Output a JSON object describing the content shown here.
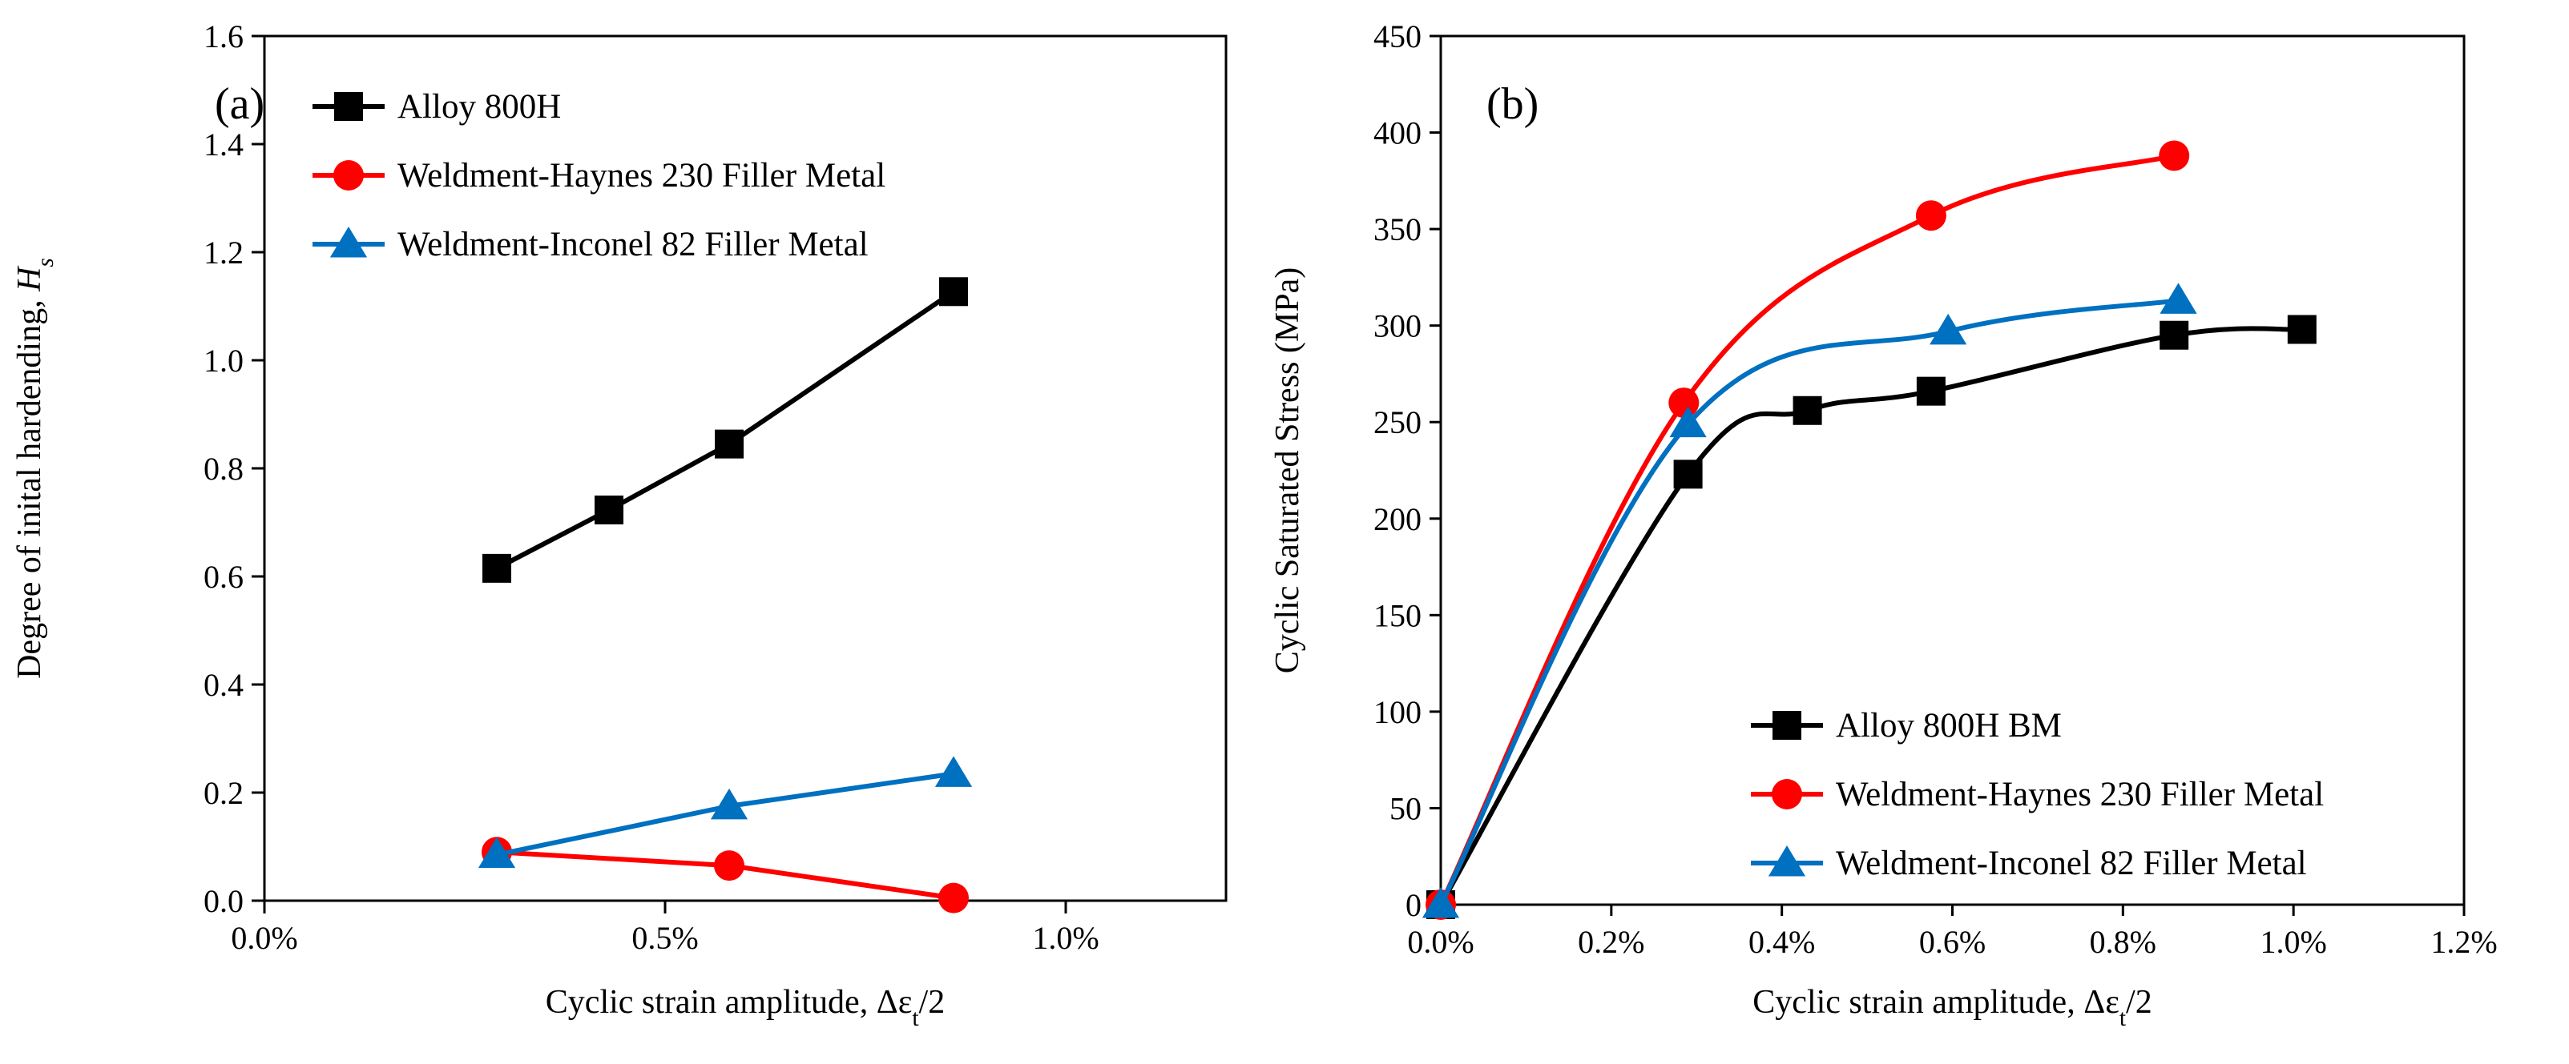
{
  "chart_data": [
    {
      "type": "line",
      "panel_label": "(a)",
      "xlabel": "Cyclic strain amplitude, Δεt/2",
      "ylabel": "Degree of inital hardending, Hs",
      "xlim": [
        0,
        1.2
      ],
      "ylim": [
        0,
        1.6
      ],
      "xticks": [
        "0.0%",
        "0.5%",
        "1.0%"
      ],
      "xtick_values": [
        0,
        0.5,
        1.0
      ],
      "yticks": [
        "0.0",
        "0.2",
        "0.4",
        "0.6",
        "0.8",
        "1.0",
        "1.2",
        "1.4",
        "1.6"
      ],
      "ytick_values": [
        0,
        0.2,
        0.4,
        0.6,
        0.8,
        1.0,
        1.2,
        1.4,
        1.6
      ],
      "legend_position": "top-left",
      "series": [
        {
          "name": "Alloy 800H",
          "color": "#000000",
          "marker": "square",
          "x": [
            0.29,
            0.43,
            0.58,
            0.86
          ],
          "y": [
            0.615,
            0.723,
            0.845,
            1.127
          ]
        },
        {
          "name": "Weldment-Haynes 230 Filler Metal",
          "color": "#ff0000",
          "marker": "circle",
          "x": [
            0.29,
            0.58,
            0.86
          ],
          "y": [
            0.09,
            0.065,
            0.005
          ]
        },
        {
          "name": "Weldment-Inconel 82 Filler Metal",
          "color": "#0070c0",
          "marker": "triangle",
          "x": [
            0.29,
            0.58,
            0.86
          ],
          "y": [
            0.085,
            0.175,
            0.235
          ]
        }
      ]
    },
    {
      "type": "line",
      "panel_label": "(b)",
      "xlabel": "Cyclic strain amplitude, Δεt/2",
      "ylabel": "Cyclic Saturated Stress (MPa)",
      "xlim": [
        0,
        1.2
      ],
      "ylim": [
        0,
        450
      ],
      "xticks": [
        "0.0%",
        "0.2%",
        "0.4%",
        "0.6%",
        "0.8%",
        "1.0%",
        "1.2%"
      ],
      "xtick_values": [
        0,
        0.2,
        0.4,
        0.6,
        0.8,
        1.0,
        1.2
      ],
      "yticks": [
        "0",
        "50",
        "100",
        "150",
        "200",
        "250",
        "300",
        "350",
        "400",
        "450"
      ],
      "ytick_values": [
        0,
        50,
        100,
        150,
        200,
        250,
        300,
        350,
        400,
        450
      ],
      "legend_position": "bottom-right",
      "series": [
        {
          "name": "Alloy 800H BM",
          "color": "#000000",
          "marker": "square",
          "x": [
            0.0,
            0.29,
            0.43,
            0.575,
            0.86,
            1.01
          ],
          "y": [
            0,
            223,
            256,
            266,
            295,
            298
          ]
        },
        {
          "name": "Weldment-Haynes 230 Filler Metal",
          "color": "#ff0000",
          "marker": "circle",
          "x": [
            0.0,
            0.285,
            0.575,
            0.86
          ],
          "y": [
            0,
            260,
            357,
            388
          ]
        },
        {
          "name": "Weldment-Inconel 82 Filler Metal",
          "color": "#0070c0",
          "marker": "triangle",
          "x": [
            0.0,
            0.29,
            0.595,
            0.865
          ],
          "y": [
            0,
            249,
            297,
            313
          ]
        }
      ]
    }
  ]
}
